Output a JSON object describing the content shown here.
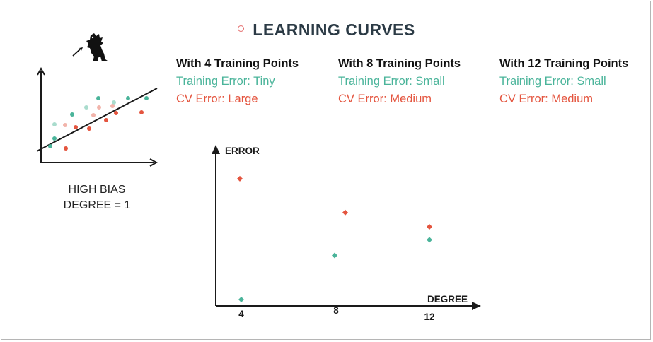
{
  "title": "LEARNING CURVES",
  "colors": {
    "training": "#4ab49a",
    "cv": "#e4553f",
    "axis": "#1a1a1a",
    "train_light": "#a9dccd",
    "cv_light": "#f2b4ab"
  },
  "panels": [
    {
      "heading": "With 4 Training Points",
      "training": "Training Error: Tiny",
      "cv": "CV Error: Large"
    },
    {
      "heading": "With 8 Training Points",
      "training": "Training Error: Small",
      "cv": "CV Error: Medium"
    },
    {
      "heading": "With 12 Training Points",
      "training": "Training Error: Small",
      "cv": "CV Error: Medium"
    }
  ],
  "model": {
    "line1": "HIGH BIAS",
    "line2": "DEGREE = 1",
    "icons": [
      "dinosaur-icon",
      "dart-icon"
    ]
  },
  "chart_data": {
    "type": "scatter",
    "xlabel": "DEGREE",
    "ylabel": "ERROR",
    "x_ticks": [
      "4",
      "8",
      "12"
    ],
    "x": [
      4,
      8,
      12
    ],
    "series": [
      {
        "key": "cv",
        "values": [
          0.93,
          0.67,
          0.56
        ]
      },
      {
        "key": "training",
        "values": [
          0.0,
          0.34,
          0.46
        ]
      }
    ],
    "ylim": [
      0,
      1
    ],
    "grid": false
  }
}
